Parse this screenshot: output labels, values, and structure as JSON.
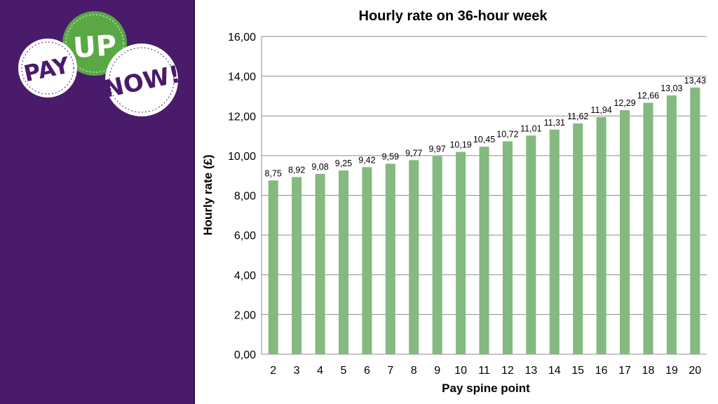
{
  "logo": {
    "word1": "PAY",
    "word2": "UP",
    "word3": "NOW!"
  },
  "chart_data": {
    "type": "bar",
    "title": "Hourly rate on 36-hour week",
    "xlabel": "Pay spine point",
    "ylabel": "Hourly rate (£)",
    "categories": [
      "2",
      "3",
      "4",
      "5",
      "6",
      "7",
      "8",
      "9",
      "10",
      "11",
      "12",
      "13",
      "14",
      "15",
      "16",
      "17",
      "18",
      "19",
      "20"
    ],
    "values": [
      8.75,
      8.92,
      9.08,
      9.25,
      9.42,
      9.59,
      9.77,
      9.97,
      10.19,
      10.45,
      10.72,
      11.01,
      11.31,
      11.62,
      11.94,
      12.29,
      12.66,
      13.03,
      13.43
    ],
    "value_labels": [
      "8,75",
      "8,92",
      "9,08",
      "9,25",
      "9,42",
      "9,59",
      "9,77",
      "9,97",
      "10,19",
      "10,45",
      "10,72",
      "11,01",
      "11,31",
      "11,62",
      "11,94",
      "12,29",
      "12,66",
      "13,03",
      "13,43"
    ],
    "ylim": [
      0,
      16
    ],
    "yticks": [
      0,
      2,
      4,
      6,
      8,
      10,
      12,
      14,
      16
    ],
    "ytick_labels": [
      "0,00",
      "2,00",
      "4,00",
      "6,00",
      "8,00",
      "10,00",
      "12,00",
      "14,00",
      "16,00"
    ],
    "grid": true,
    "legend": "none",
    "bar_color": "#84b97f",
    "grid_color": "#8c8c8c"
  },
  "colors": {
    "panel": "#4a1a6b",
    "badge_green": "#5aa845",
    "badge_purple_text": "#4a1a6b"
  }
}
